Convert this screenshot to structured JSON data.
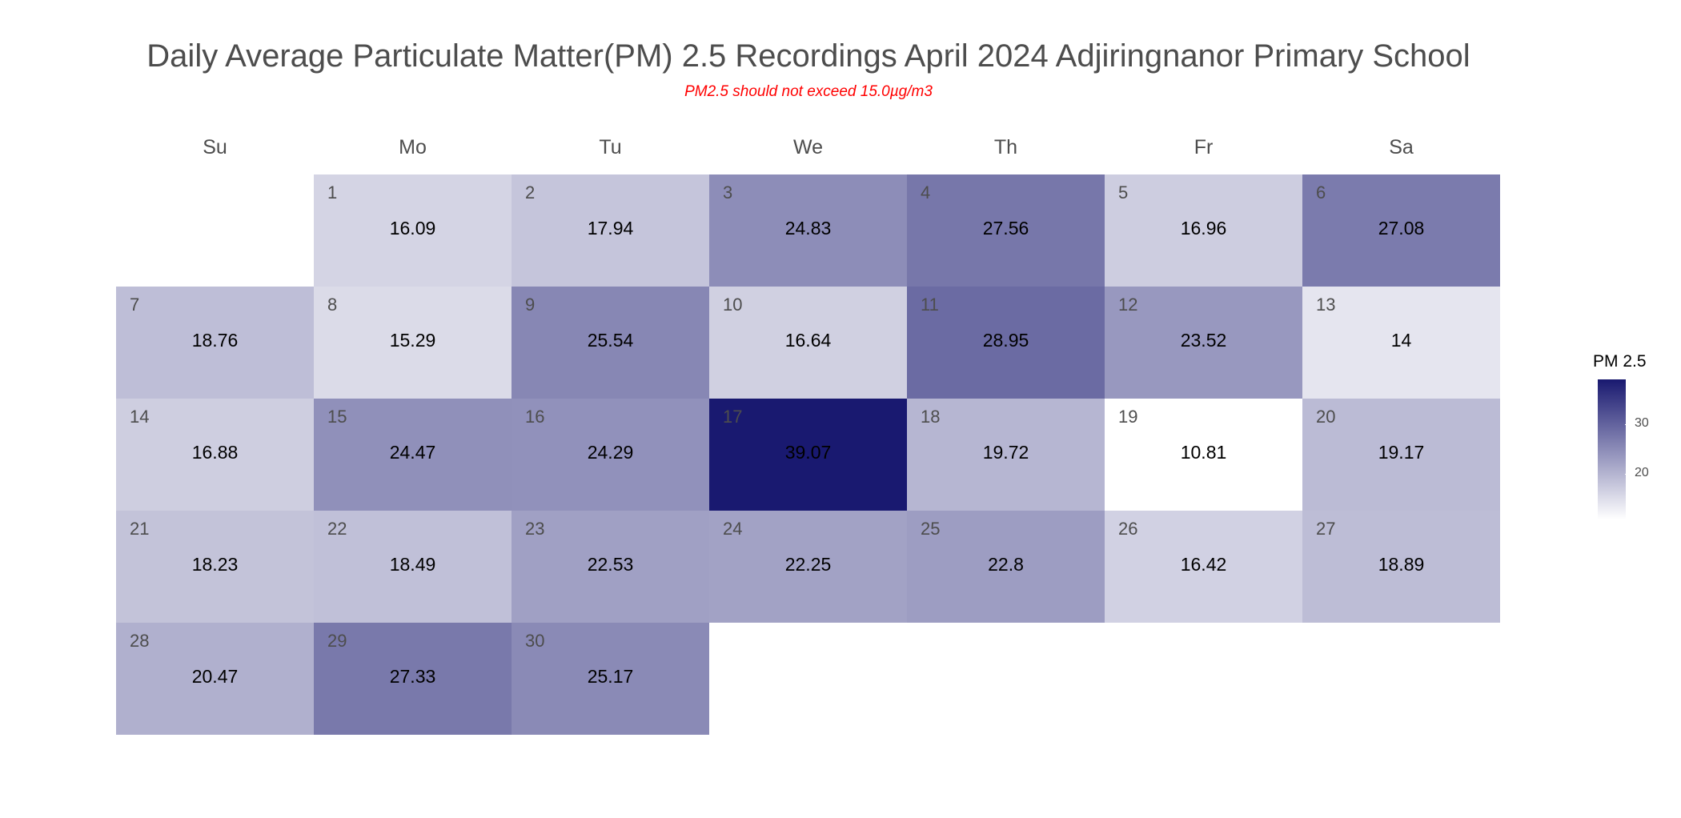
{
  "chart_data": {
    "type": "heatmap",
    "title": "Daily Average Particulate Matter(PM) 2.5 Recordings April 2024 Adjiringnanor Primary School",
    "subtitle": "PM2.5 should not exceed 15.0µg/m3",
    "weekdays": [
      "Su",
      "Mo",
      "Tu",
      "We",
      "Th",
      "Fr",
      "Sa"
    ],
    "first_weekday_index": 1,
    "days": [
      {
        "day": "1",
        "value": 16.09,
        "label": "16.09"
      },
      {
        "day": "2",
        "value": 17.94,
        "label": "17.94"
      },
      {
        "day": "3",
        "value": 24.83,
        "label": "24.83"
      },
      {
        "day": "4",
        "value": 27.56,
        "label": "27.56"
      },
      {
        "day": "5",
        "value": 16.96,
        "label": "16.96"
      },
      {
        "day": "6",
        "value": 27.08,
        "label": "27.08"
      },
      {
        "day": "7",
        "value": 18.76,
        "label": "18.76"
      },
      {
        "day": "8",
        "value": 15.29,
        "label": "15.29"
      },
      {
        "day": "9",
        "value": 25.54,
        "label": "25.54"
      },
      {
        "day": "10",
        "value": 16.64,
        "label": "16.64"
      },
      {
        "day": "11",
        "value": 28.95,
        "label": "28.95"
      },
      {
        "day": "12",
        "value": 23.52,
        "label": "23.52"
      },
      {
        "day": "13",
        "value": 14,
        "label": "14"
      },
      {
        "day": "14",
        "value": 16.88,
        "label": "16.88"
      },
      {
        "day": "15",
        "value": 24.47,
        "label": "24.47"
      },
      {
        "day": "16",
        "value": 24.29,
        "label": "24.29"
      },
      {
        "day": "17",
        "value": 39.07,
        "label": "39.07"
      },
      {
        "day": "18",
        "value": 19.72,
        "label": "19.72"
      },
      {
        "day": "19",
        "value": 10.81,
        "label": "10.81"
      },
      {
        "day": "20",
        "value": 19.17,
        "label": "19.17"
      },
      {
        "day": "21",
        "value": 18.23,
        "label": "18.23"
      },
      {
        "day": "22",
        "value": 18.49,
        "label": "18.49"
      },
      {
        "day": "23",
        "value": 22.53,
        "label": "22.53"
      },
      {
        "day": "24",
        "value": 22.25,
        "label": "22.25"
      },
      {
        "day": "25",
        "value": 22.8,
        "label": "22.8"
      },
      {
        "day": "26",
        "value": 16.42,
        "label": "16.42"
      },
      {
        "day": "27",
        "value": 18.89,
        "label": "18.89"
      },
      {
        "day": "28",
        "value": 20.47,
        "label": "20.47"
      },
      {
        "day": "29",
        "value": 27.33,
        "label": "27.33"
      },
      {
        "day": "30",
        "value": 25.17,
        "label": "25.17"
      }
    ],
    "color_scale": {
      "low": "#ffffff",
      "high": "#191970",
      "min": 10.81,
      "max": 39.07
    },
    "legend": {
      "title": "PM 2.5",
      "ticks": [
        {
          "value": 20,
          "label": "20"
        },
        {
          "value": 30,
          "label": "30"
        }
      ],
      "position": "right"
    }
  }
}
